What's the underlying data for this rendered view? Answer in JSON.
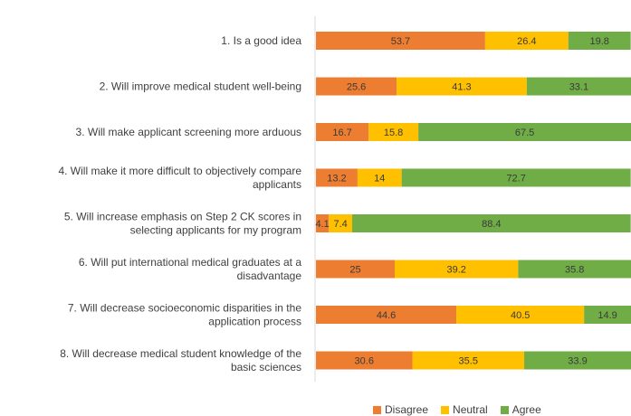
{
  "chart_data": {
    "type": "bar",
    "orientation": "horizontal",
    "stacked": true,
    "categories": [
      [
        "1. Is a good idea"
      ],
      [
        "2. Will improve medical student well-being"
      ],
      [
        "3. Will make applicant screening more arduous"
      ],
      [
        "4. Will make it more difficult to objectively compare",
        "applicants"
      ],
      [
        "5. Will increase emphasis on Step 2 CK scores in",
        "selecting applicants for my program"
      ],
      [
        "6. Will put international medical graduates at a",
        "disadvantage"
      ],
      [
        "7. Will decrease socioeconomic disparities in the",
        "application process"
      ],
      [
        "8. Will decrease medical student knowledge of the",
        "basic sciences"
      ]
    ],
    "series": [
      {
        "name": "Disagree",
        "color": "#ed7d31",
        "values": [
          53.7,
          25.6,
          16.7,
          13.2,
          4.1,
          25,
          44.6,
          30.6
        ],
        "labels": [
          "53.7",
          "25.6",
          "16.7",
          "13.2",
          "4.1",
          "25",
          "44.6",
          "30.6"
        ]
      },
      {
        "name": "Neutral",
        "color": "#ffc000",
        "values": [
          26.4,
          41.3,
          15.8,
          14,
          7.4,
          39.2,
          40.5,
          35.5
        ],
        "labels": [
          "26.4",
          "41.3",
          "15.8",
          "14",
          "7.4",
          "39.2",
          "40.5",
          "35.5"
        ]
      },
      {
        "name": "Agree",
        "color": "#70ad47",
        "values": [
          19.8,
          33.1,
          67.5,
          72.7,
          88.4,
          35.8,
          14.9,
          33.9
        ],
        "labels": [
          "19.8",
          "33.1",
          "67.5",
          "72.7",
          "88.4",
          "35.8",
          "14.9",
          "33.9"
        ]
      }
    ],
    "xlim": [
      0,
      100
    ],
    "legend_position": "bottom",
    "grid": false
  }
}
